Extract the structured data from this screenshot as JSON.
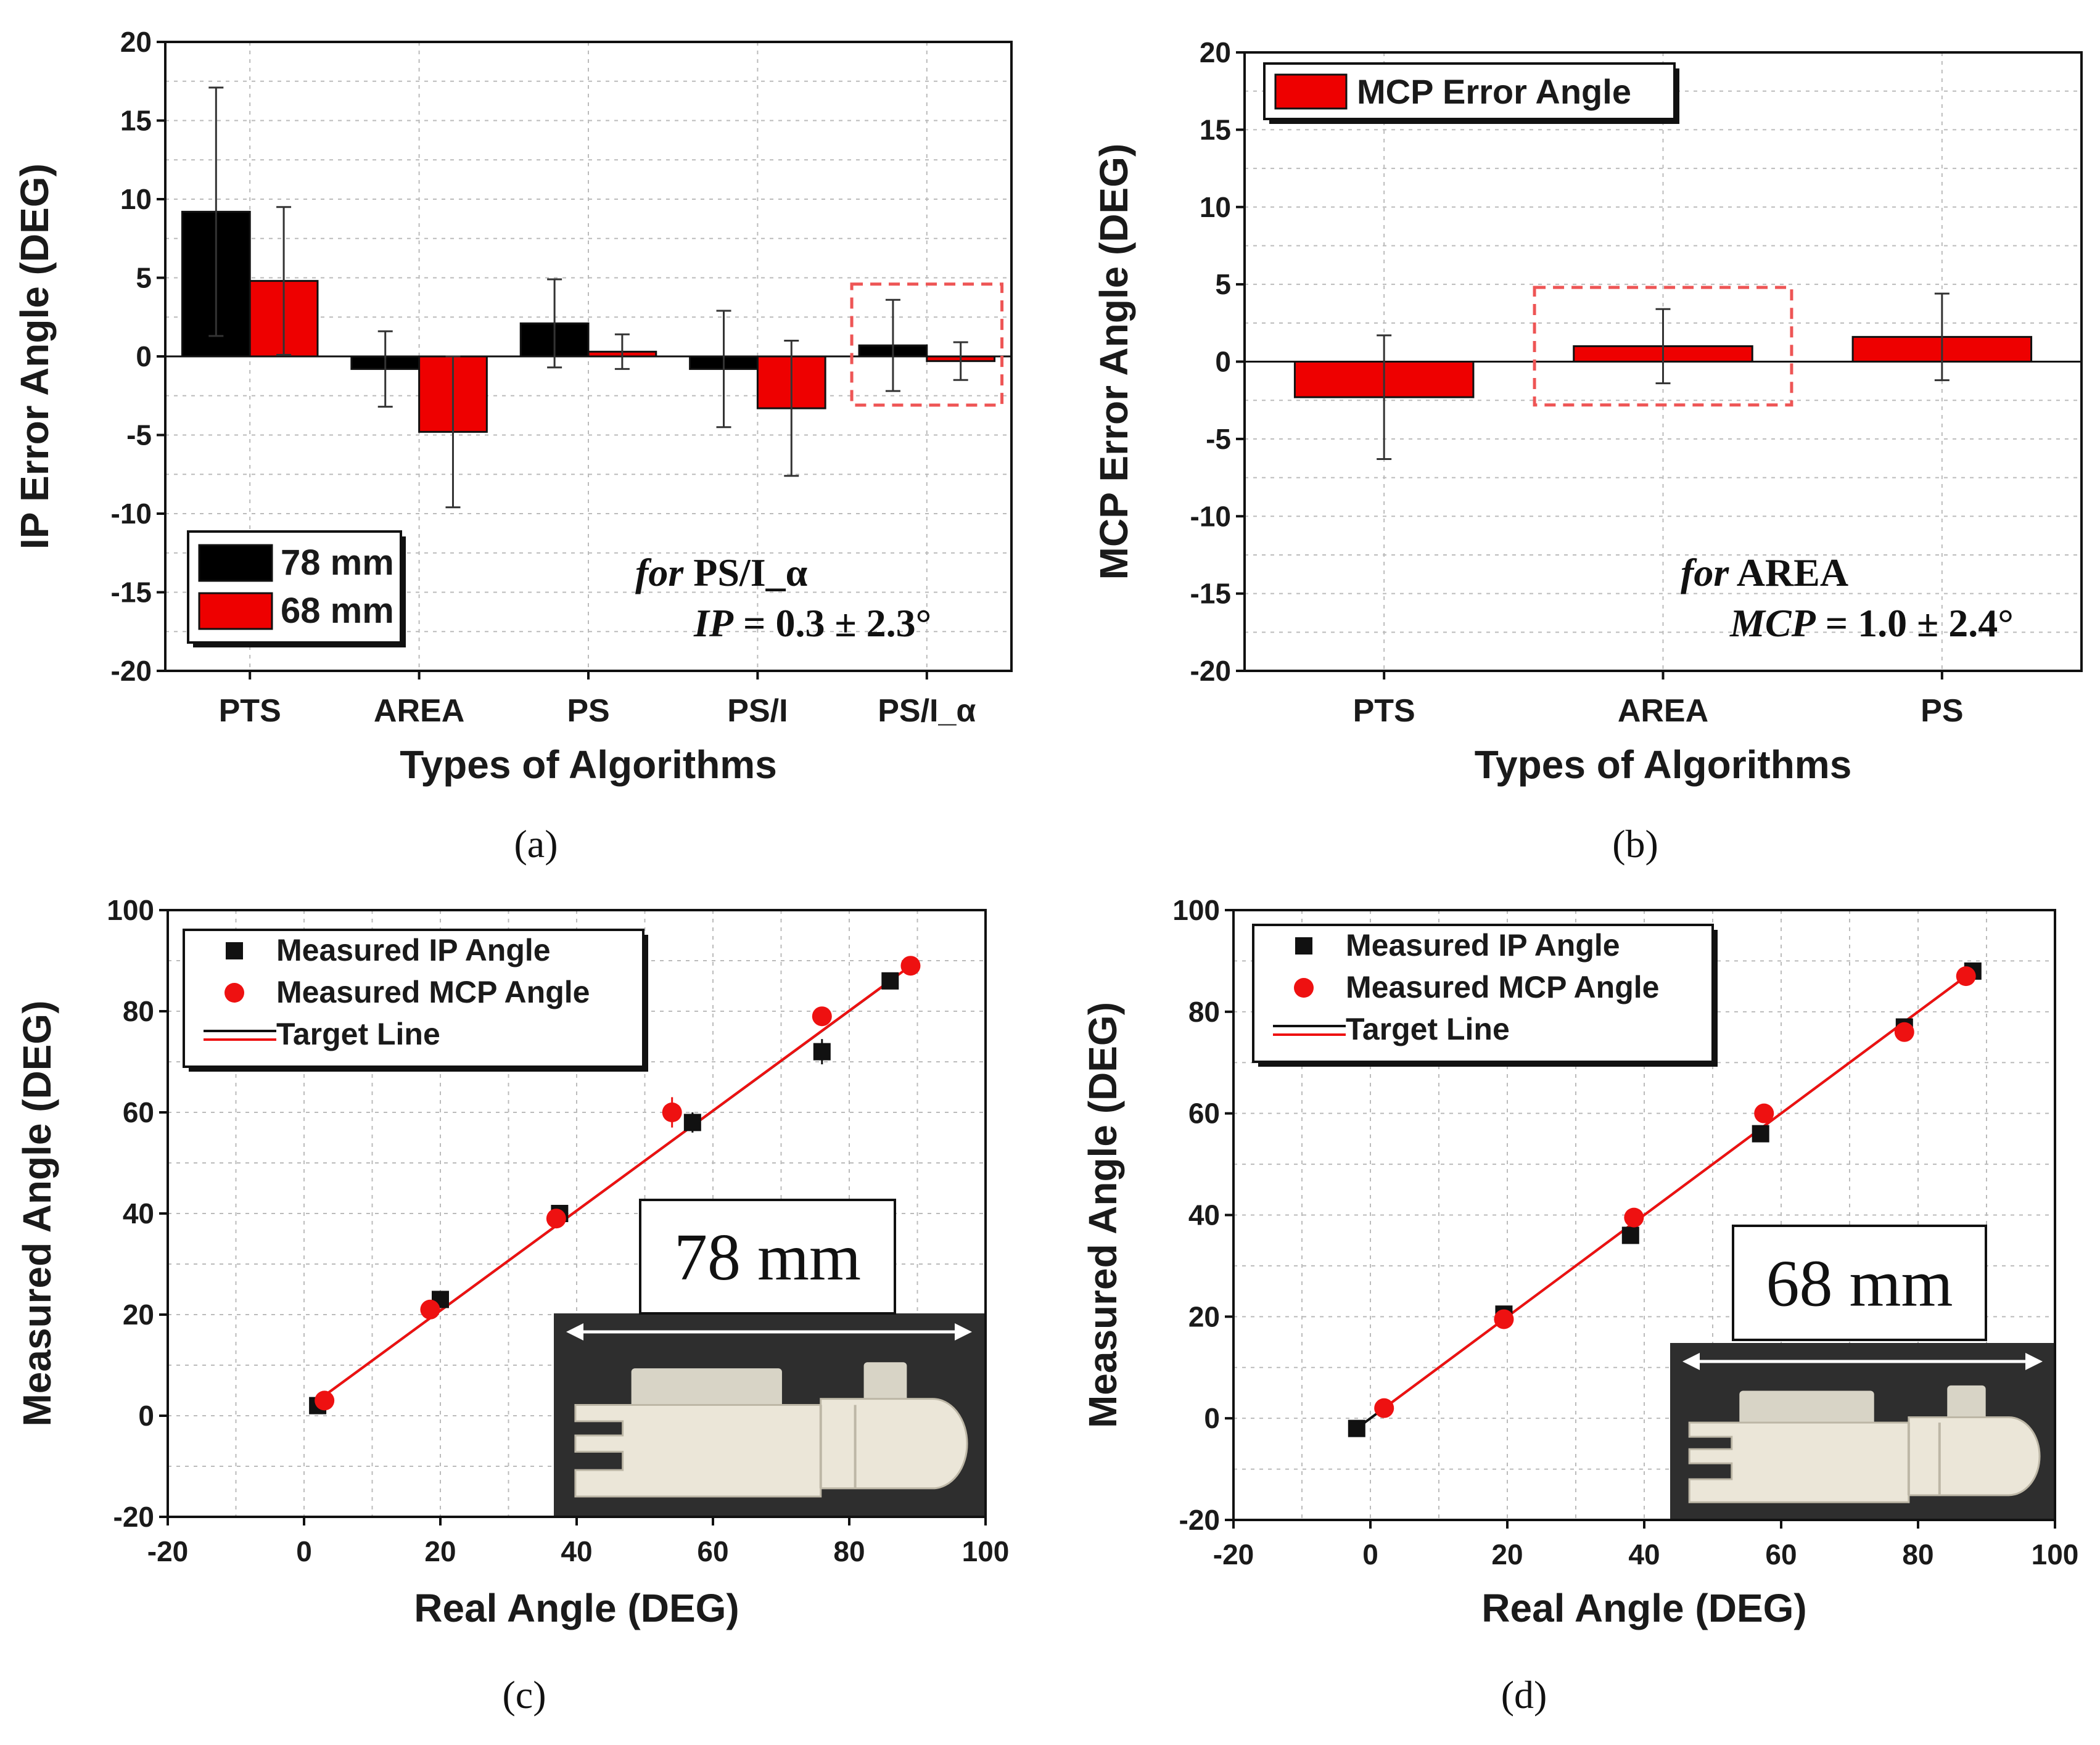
{
  "chart_data": [
    {
      "id": "a",
      "sublabel": "(a)",
      "type": "bar",
      "ylabel": "IP Error Angle (DEG)",
      "xlabel": "Types of Algorithms",
      "ylim": [
        -20,
        20
      ],
      "yticks": [
        20,
        15,
        10,
        5,
        0,
        -5,
        -10,
        -15,
        -20
      ],
      "categories": [
        "PTS",
        "AREA",
        "PS",
        "PS/I",
        "PS/I_α"
      ],
      "series": [
        {
          "name": "78 mm",
          "color": "#000000",
          "values": [
            9.2,
            -0.8,
            2.1,
            -0.8,
            0.7
          ],
          "errors": [
            7.9,
            2.4,
            2.8,
            3.7,
            2.9
          ]
        },
        {
          "name": "68 mm",
          "color": "#ee0000",
          "values": [
            4.8,
            -4.8,
            0.3,
            -3.3,
            -0.3
          ],
          "errors": [
            4.7,
            4.8,
            1.1,
            4.3,
            1.2
          ]
        }
      ],
      "annotation": {
        "line1_italic": "for",
        "line1": " PS/I_α",
        "line2_italic": "IP",
        "line2": " = 0.3 ± 2.3°"
      },
      "highlight_category": "PS/I_α"
    },
    {
      "id": "b",
      "sublabel": "(b)",
      "type": "bar",
      "ylabel": "MCP Error Angle (DEG)",
      "xlabel": "Types of Algorithms",
      "ylim": [
        -20,
        20
      ],
      "yticks": [
        20,
        15,
        10,
        5,
        0,
        -5,
        -10,
        -15,
        -20
      ],
      "categories": [
        "PTS",
        "AREA",
        "PS"
      ],
      "series": [
        {
          "name": "MCP Error Angle",
          "color": "#ee0000",
          "values": [
            -2.3,
            1.0,
            1.6
          ],
          "errors": [
            4.0,
            2.4,
            2.8
          ]
        }
      ],
      "annotation": {
        "line1_italic": "for",
        "line1": " AREA",
        "line2_italic": "MCP",
        "line2": " = 1.0 ± 2.4°"
      },
      "highlight_category": "AREA"
    },
    {
      "id": "c",
      "sublabel": "(c)",
      "type": "scatter",
      "ylabel": "Measured Angle (DEG)",
      "xlabel": "Real Angle (DEG)",
      "xlim": [
        -20,
        100
      ],
      "ylim": [
        -20,
        100
      ],
      "xticks": [
        -20,
        0,
        20,
        40,
        60,
        80,
        100
      ],
      "yticks": [
        100,
        80,
        60,
        40,
        20,
        0,
        -20
      ],
      "series": [
        {
          "name": "Measured IP Angle",
          "marker": "square",
          "color": "#111111",
          "x": [
            2,
            20,
            37.5,
            57,
            76,
            86
          ],
          "y": [
            2,
            23,
            40,
            58,
            72,
            86
          ],
          "err": [
            0.8,
            0.8,
            1.2,
            2,
            2.5,
            1
          ]
        },
        {
          "name": "Measured MCP Angle",
          "marker": "circle",
          "color": "#ee1111",
          "x": [
            3,
            18.5,
            37,
            54,
            76,
            89
          ],
          "y": [
            3,
            21,
            39,
            60,
            79,
            89
          ],
          "err": [
            0.8,
            0.8,
            1,
            3,
            1.5,
            0.8
          ]
        }
      ],
      "target_lines": [
        {
          "color": "#111111",
          "x": [
            2,
            86
          ],
          "y": [
            3,
            86
          ]
        },
        {
          "color": "#ee1111",
          "x": [
            2,
            89
          ],
          "y": [
            3,
            89
          ]
        }
      ],
      "legend": [
        "Measured IP Angle",
        "Measured MCP Angle",
        "Target Line"
      ],
      "inset_label": "78 mm"
    },
    {
      "id": "d",
      "sublabel": "(d)",
      "type": "scatter",
      "ylabel": "Measured Angle (DEG)",
      "xlabel": "Real Angle (DEG)",
      "xlim": [
        -20,
        100
      ],
      "ylim": [
        -20,
        100
      ],
      "xticks": [
        -20,
        0,
        20,
        40,
        60,
        80,
        100
      ],
      "yticks": [
        100,
        80,
        60,
        40,
        20,
        0,
        -20
      ],
      "series": [
        {
          "name": "Measured IP Angle",
          "marker": "square",
          "color": "#111111",
          "x": [
            -2,
            19.5,
            38,
            57,
            78,
            88
          ],
          "y": [
            -2,
            20.5,
            36,
            56,
            77,
            88
          ],
          "err": [
            0.5,
            1,
            1,
            1,
            1.5,
            0.8
          ]
        },
        {
          "name": "Measured MCP Angle",
          "marker": "circle",
          "color": "#ee1111",
          "x": [
            2,
            19.5,
            38.5,
            57.5,
            78,
            87
          ],
          "y": [
            2,
            19.5,
            39.5,
            60,
            76,
            87
          ],
          "err": [
            0.5,
            1,
            1.5,
            0.8,
            1.5,
            0.8
          ]
        }
      ],
      "target_lines": [
        {
          "color": "#111111",
          "x": [
            -2,
            88
          ],
          "y": [
            -2,
            88
          ]
        },
        {
          "color": "#ee1111",
          "x": [
            2,
            87
          ],
          "y": [
            2,
            87
          ]
        }
      ],
      "legend": [
        "Measured IP Angle",
        "Measured MCP Angle",
        "Target Line"
      ],
      "inset_label": "68 mm"
    }
  ]
}
